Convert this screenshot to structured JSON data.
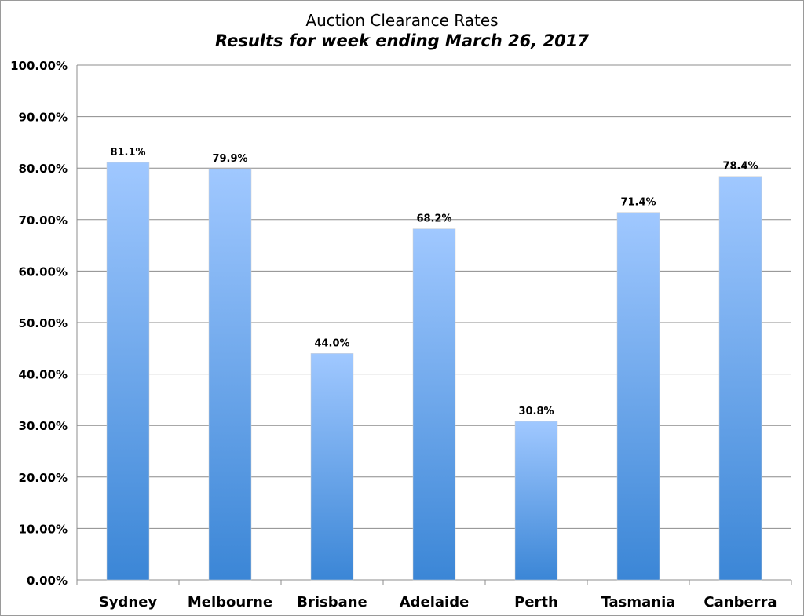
{
  "chart_data": {
    "type": "bar",
    "title": "Auction Clearance Rates",
    "subtitle": "Results for week ending March 26, 2017",
    "xlabel": "",
    "ylabel": "",
    "categories": [
      "Sydney",
      "Melbourne",
      "Brisbane",
      "Adelaide",
      "Perth",
      "Tasmania",
      "Canberra"
    ],
    "values": [
      81.1,
      79.9,
      44.0,
      68.2,
      30.8,
      71.4,
      78.4
    ],
    "data_labels": [
      "81.1%",
      "79.9%",
      "44.0%",
      "68.2%",
      "30.8%",
      "71.4%",
      "78.4%"
    ],
    "ylim": [
      0,
      100
    ],
    "yticks": [
      "0.00%",
      "10.00%",
      "20.00%",
      "30.00%",
      "40.00%",
      "50.00%",
      "60.00%",
      "70.00%",
      "80.00%",
      "90.00%",
      "100.00%"
    ],
    "grid": true,
    "legend": "none",
    "colors": {
      "bar_top": "#a0c8ff",
      "bar_bottom": "#3b86d6",
      "grid": "#8c8c8c"
    }
  }
}
